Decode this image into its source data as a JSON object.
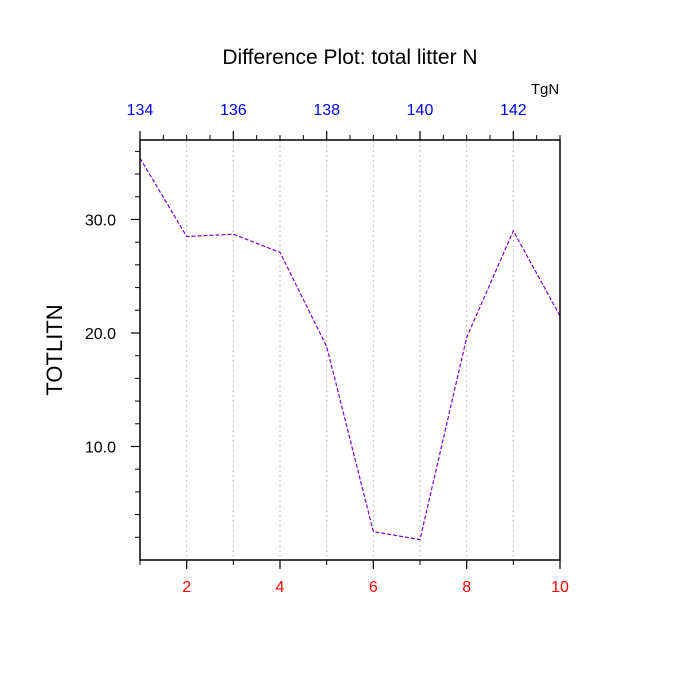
{
  "chart_data": {
    "type": "line",
    "title": "Difference Plot: total litter N",
    "ylabel": "TOTLITN",
    "top_axis_label": "TgN",
    "x": [
      1,
      2,
      3,
      4,
      5,
      6,
      7,
      8,
      9,
      10
    ],
    "xlim": [
      1,
      10
    ],
    "ylim": [
      0,
      37
    ],
    "series": [
      {
        "values": [
          35.4,
          28.5,
          28.7,
          27.1,
          18.8,
          2.5,
          1.8,
          19.6,
          29.0,
          21.5
        ]
      }
    ],
    "bottom_ticks": {
      "values": [
        2,
        4,
        6,
        8,
        10
      ],
      "labels": [
        "2",
        "4",
        "6",
        "8",
        "10"
      ]
    },
    "top_ticks": {
      "values": [
        1,
        3,
        5,
        7,
        9
      ],
      "labels": [
        "134",
        "136",
        "138",
        "140",
        "142"
      ]
    },
    "left_ticks": {
      "values": [
        10,
        20,
        30
      ],
      "labels": [
        "10.0",
        "20.0",
        "30.0"
      ]
    },
    "grid": "vertical-dotted",
    "colors": {
      "line": "#8000cc",
      "bottom_ticks": "#ff0000",
      "top_ticks": "#0000ff",
      "frame": "#000000",
      "grid": "#bbbbbb"
    }
  }
}
